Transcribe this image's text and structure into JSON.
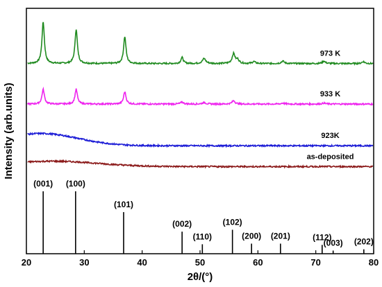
{
  "chart_data": {
    "type": "line",
    "xlabel": "2θ/(°)",
    "ylabel": "Intensity (arb.units)",
    "xlim": [
      20,
      80
    ],
    "xticks": [
      20,
      30,
      40,
      50,
      60,
      70,
      80
    ],
    "yticks_shown": false,
    "grid": false,
    "series": [
      {
        "name": "973 K",
        "color": "#1f8a1f",
        "baseline": 0.775,
        "peaks": [
          {
            "x": 22.9,
            "h": 0.17,
            "w": 0.25
          },
          {
            "x": 28.6,
            "h": 0.14,
            "w": 0.25
          },
          {
            "x": 37.0,
            "h": 0.11,
            "w": 0.25
          },
          {
            "x": 46.9,
            "h": 0.025,
            "w": 0.25
          },
          {
            "x": 50.7,
            "h": 0.02,
            "w": 0.35
          },
          {
            "x": 55.8,
            "h": 0.04,
            "w": 0.3
          },
          {
            "x": 56.5,
            "h": 0.015,
            "w": 0.3
          },
          {
            "x": 59.3,
            "h": 0.008,
            "w": 0.3
          },
          {
            "x": 64.3,
            "h": 0.01,
            "w": 0.3
          },
          {
            "x": 71.4,
            "h": 0.01,
            "w": 0.3
          },
          {
            "x": 78.2,
            "h": 0.008,
            "w": 0.3
          }
        ]
      },
      {
        "name": "933 K",
        "color": "#ee22ee",
        "baseline": 0.61,
        "peaks": [
          {
            "x": 22.9,
            "h": 0.06,
            "w": 0.25
          },
          {
            "x": 28.6,
            "h": 0.06,
            "w": 0.25
          },
          {
            "x": 37.0,
            "h": 0.05,
            "w": 0.25
          },
          {
            "x": 46.9,
            "h": 0.008,
            "w": 0.3
          },
          {
            "x": 50.7,
            "h": 0.006,
            "w": 0.35
          },
          {
            "x": 55.8,
            "h": 0.014,
            "w": 0.3
          },
          {
            "x": 64.3,
            "h": 0.004,
            "w": 0.3
          },
          {
            "x": 71.4,
            "h": 0.004,
            "w": 0.3
          }
        ]
      },
      {
        "name": "923K",
        "color": "#1a1ad6",
        "baseline": 0.44,
        "hump": {
          "center": 22.5,
          "height": 0.05,
          "width": 9
        }
      },
      {
        "name": "as-deposited",
        "color": "#8b1a1a",
        "baseline": 0.355,
        "hump": {
          "center": 24.5,
          "height": 0.022,
          "width": 11
        }
      }
    ],
    "reference_pattern": [
      {
        "label": "(001)",
        "x": 22.9,
        "h": 0.99
      },
      {
        "label": "(100)",
        "x": 28.5,
        "h": 0.99
      },
      {
        "label": "(101)",
        "x": 36.8,
        "h": 0.66
      },
      {
        "label": "(002)",
        "x": 46.9,
        "h": 0.35
      },
      {
        "label": "(110)",
        "x": 50.4,
        "h": 0.15
      },
      {
        "label": "(102)",
        "x": 55.6,
        "h": 0.38
      },
      {
        "label": "(200)",
        "x": 58.9,
        "h": 0.16
      },
      {
        "label": "(201)",
        "x": 63.9,
        "h": 0.16
      },
      {
        "label": "(112)",
        "x": 71.1,
        "h": 0.14
      },
      {
        "label": "(003)",
        "x": 73.0,
        "h": 0.05
      },
      {
        "label": "(202)",
        "x": 78.3,
        "h": 0.07
      }
    ]
  }
}
